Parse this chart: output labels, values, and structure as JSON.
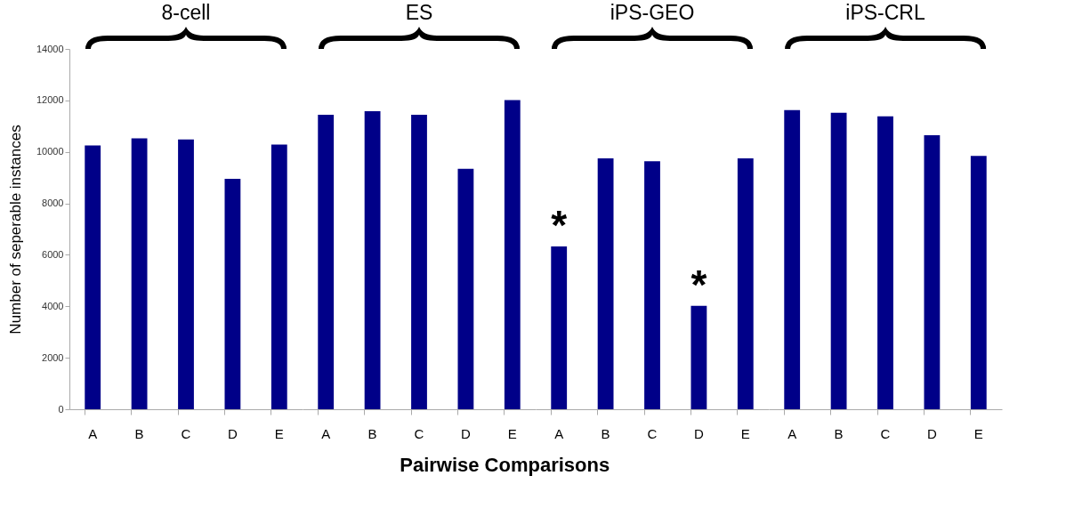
{
  "chart_data": [
    {
      "type": "bar",
      "title": "8-cell",
      "ylabel": "Number of seperable instances",
      "categories": [
        "A",
        "B",
        "C",
        "D",
        "E"
      ],
      "values": [
        10250,
        10530,
        10480,
        8950,
        10280
      ],
      "color": "#000088",
      "ylim": [
        0,
        14000
      ],
      "yticks": [
        0,
        2000,
        4000,
        6000,
        8000,
        10000,
        12000,
        14000
      ]
    },
    {
      "type": "bar",
      "title": "ES",
      "categories": [
        "A",
        "B",
        "C",
        "D",
        "E"
      ],
      "values": [
        11440,
        11580,
        11440,
        9340,
        12010
      ],
      "color": "#000088",
      "ylim": [
        0,
        14000
      ],
      "yticks": [
        0,
        2000,
        4000,
        6000,
        8000,
        10000,
        12000,
        14000
      ],
      "tick_labels": "x"
    },
    {
      "type": "bar",
      "title": "iPS-GEO",
      "xlabel": "Pairwise Comparisons",
      "categories": [
        "A",
        "B",
        "C",
        "D",
        "E"
      ],
      "values": [
        6330,
        9750,
        9640,
        4020,
        9750
      ],
      "color": "#000088",
      "ylim": [
        0,
        14000
      ],
      "yticks": [
        0,
        2000,
        4000,
        6000,
        8000,
        10000,
        12000,
        14000
      ],
      "tick_labels": "x",
      "annotations": [
        {
          "text": "*",
          "x": "A",
          "y": 6330
        },
        {
          "text": "*",
          "x": "D",
          "y": 4020
        }
      ]
    },
    {
      "type": "bar",
      "title": "iPS-CRL",
      "categories": [
        "A",
        "B",
        "C",
        "D",
        "E"
      ],
      "values": [
        11620,
        11520,
        11380,
        10650,
        9840
      ],
      "color": "#000088",
      "ylim": [
        0,
        14000
      ],
      "yticks": [
        0,
        2000,
        4000,
        6000,
        8000,
        10000,
        12000,
        14000
      ],
      "tick_labels": "x"
    }
  ]
}
